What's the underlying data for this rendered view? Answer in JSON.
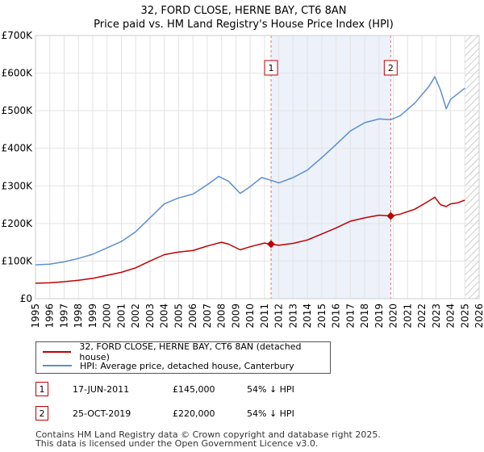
{
  "chart_data": {
    "type": "line",
    "title": "32, FORD CLOSE, HERNE BAY, CT6 8AN",
    "subtitle": "Price paid vs. HM Land Registry's House Price Index (HPI)",
    "xlabel": "",
    "ylabel": "",
    "xlim": [
      1995,
      2026
    ],
    "ylim": [
      0,
      700000
    ],
    "x_ticks": [
      "1995",
      "1996",
      "1997",
      "1998",
      "1999",
      "2000",
      "2001",
      "2002",
      "2003",
      "2004",
      "2005",
      "2006",
      "2007",
      "2008",
      "2009",
      "2010",
      "2011",
      "2012",
      "2013",
      "2014",
      "2015",
      "2016",
      "2017",
      "2018",
      "2019",
      "2020",
      "2021",
      "2022",
      "2023",
      "2024",
      "2025",
      "2026"
    ],
    "y_ticks": [
      {
        "value": 0,
        "label": "£0"
      },
      {
        "value": 100000,
        "label": "£100K"
      },
      {
        "value": 200000,
        "label": "£200K"
      },
      {
        "value": 300000,
        "label": "£300K"
      },
      {
        "value": 400000,
        "label": "£400K"
      },
      {
        "value": 500000,
        "label": "£500K"
      },
      {
        "value": 600000,
        "label": "£600K"
      },
      {
        "value": 700000,
        "label": "£700K"
      }
    ],
    "grid": true,
    "shaded_region": {
      "from": 2011.46,
      "to": 2019.82,
      "color": "#dce6f5"
    },
    "forecast_region": {
      "from": 2025.0,
      "to": 2026
    },
    "series": [
      {
        "name": "32, FORD CLOSE, HERNE BAY, CT6 8AN (detached house)",
        "color": "#c00000",
        "points": [
          [
            1995.0,
            41000
          ],
          [
            1996.0,
            42000
          ],
          [
            1997.0,
            45000
          ],
          [
            1998.0,
            49000
          ],
          [
            1999.0,
            54000
          ],
          [
            2000.0,
            62000
          ],
          [
            2001.0,
            70000
          ],
          [
            2002.0,
            82000
          ],
          [
            2003.0,
            100000
          ],
          [
            2004.0,
            117000
          ],
          [
            2005.0,
            124000
          ],
          [
            2006.0,
            128000
          ],
          [
            2007.0,
            140000
          ],
          [
            2008.0,
            150000
          ],
          [
            2008.5,
            145000
          ],
          [
            2009.3,
            130000
          ],
          [
            2010.0,
            138000
          ],
          [
            2011.0,
            148000
          ],
          [
            2011.46,
            145000
          ],
          [
            2012.0,
            142000
          ],
          [
            2013.0,
            147000
          ],
          [
            2014.0,
            156000
          ],
          [
            2015.0,
            172000
          ],
          [
            2016.0,
            188000
          ],
          [
            2017.0,
            206000
          ],
          [
            2018.0,
            215000
          ],
          [
            2019.0,
            222000
          ],
          [
            2019.82,
            220000
          ],
          [
            2020.5,
            225000
          ],
          [
            2021.5,
            238000
          ],
          [
            2022.5,
            260000
          ],
          [
            2022.9,
            270000
          ],
          [
            2023.3,
            250000
          ],
          [
            2023.7,
            245000
          ],
          [
            2024.0,
            252000
          ],
          [
            2024.5,
            255000
          ],
          [
            2025.0,
            262000
          ]
        ]
      },
      {
        "name": "HPI: Average price, detached house, Canterbury",
        "color": "#5b8fd0",
        "points": [
          [
            1995.0,
            90000
          ],
          [
            1996.0,
            92000
          ],
          [
            1997.0,
            98000
          ],
          [
            1998.0,
            107000
          ],
          [
            1999.0,
            118000
          ],
          [
            2000.0,
            135000
          ],
          [
            2001.0,
            152000
          ],
          [
            2002.0,
            178000
          ],
          [
            2003.0,
            215000
          ],
          [
            2004.0,
            252000
          ],
          [
            2005.0,
            268000
          ],
          [
            2006.0,
            278000
          ],
          [
            2007.0,
            303000
          ],
          [
            2007.8,
            325000
          ],
          [
            2008.5,
            312000
          ],
          [
            2009.3,
            280000
          ],
          [
            2010.0,
            298000
          ],
          [
            2010.8,
            322000
          ],
          [
            2011.46,
            315000
          ],
          [
            2012.0,
            308000
          ],
          [
            2013.0,
            322000
          ],
          [
            2014.0,
            342000
          ],
          [
            2015.0,
            375000
          ],
          [
            2016.0,
            410000
          ],
          [
            2017.0,
            446000
          ],
          [
            2018.0,
            468000
          ],
          [
            2019.0,
            478000
          ],
          [
            2019.82,
            476000
          ],
          [
            2020.5,
            487000
          ],
          [
            2021.5,
            520000
          ],
          [
            2022.5,
            565000
          ],
          [
            2022.9,
            590000
          ],
          [
            2023.3,
            555000
          ],
          [
            2023.7,
            505000
          ],
          [
            2024.0,
            530000
          ],
          [
            2024.5,
            545000
          ],
          [
            2025.0,
            560000
          ]
        ]
      }
    ],
    "annotations": [
      {
        "id": "1",
        "x": 2011.46,
        "y": 145000
      },
      {
        "id": "2",
        "x": 2019.82,
        "y": 220000
      }
    ]
  },
  "legend": {
    "items": [
      {
        "label": "32, FORD CLOSE, HERNE BAY, CT6 8AN (detached house)",
        "color": "#c00000"
      },
      {
        "label": "HPI: Average price, detached house, Canterbury",
        "color": "#5b8fd0"
      }
    ]
  },
  "transactions": [
    {
      "id": "1",
      "date": "17-JUN-2011",
      "price": "£145,000",
      "hpi": "54% ↓ HPI"
    },
    {
      "id": "2",
      "date": "25-OCT-2019",
      "price": "£220,000",
      "hpi": "54% ↓ HPI"
    }
  ],
  "footer": {
    "line1": "Contains HM Land Registry data © Crown copyright and database right 2025.",
    "line2": "This data is licensed under the Open Government Licence v3.0."
  }
}
